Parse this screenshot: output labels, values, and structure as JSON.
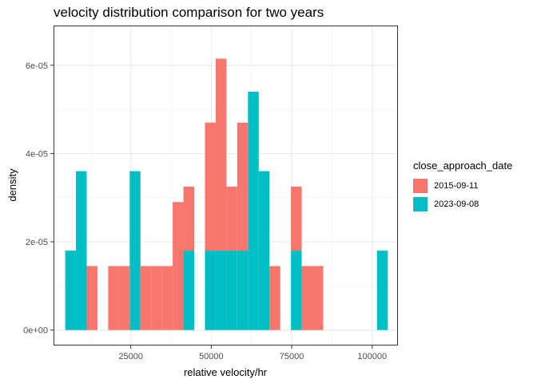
{
  "chart_data": {
    "type": "histogram",
    "title": "velocity distribution comparison for two years",
    "xlabel": "relative velocity/hr",
    "ylabel": "density",
    "xlim": [
      1000,
      108000
    ],
    "ylim": [
      -3.5e-06,
      6.9e-05
    ],
    "x_ticks": [
      25000,
      50000,
      75000,
      100000
    ],
    "x_tick_labels": [
      "25000",
      "50000",
      "75000",
      "100000"
    ],
    "y_ticks": [
      0,
      2e-05,
      4e-05,
      6e-05
    ],
    "y_tick_labels": [
      "0e+00",
      "2e-05",
      "4e-05",
      "6e-05"
    ],
    "bin_width": 3340,
    "stacked": true,
    "legend_title": "close_approach_date",
    "legend_position": "right",
    "grid": true,
    "series": [
      {
        "name": "2015-09-11",
        "color": "#F8766D",
        "bins": [
          {
            "x0": 11300,
            "x1": 14640,
            "density": 1.45e-05
          },
          {
            "x0": 17980,
            "x1": 21320,
            "density": 1.45e-05
          },
          {
            "x0": 21320,
            "x1": 24660,
            "density": 1.45e-05
          },
          {
            "x0": 28000,
            "x1": 31340,
            "density": 1.45e-05
          },
          {
            "x0": 31340,
            "x1": 34680,
            "density": 1.45e-05
          },
          {
            "x0": 34680,
            "x1": 38020,
            "density": 1.45e-05
          },
          {
            "x0": 38020,
            "x1": 41360,
            "density": 2.9e-05
          },
          {
            "x0": 41360,
            "x1": 44700,
            "density": 1.45e-05
          },
          {
            "x0": 48040,
            "x1": 51380,
            "density": 2.9e-05
          },
          {
            "x0": 51380,
            "x1": 54720,
            "density": 4.35e-05
          },
          {
            "x0": 54720,
            "x1": 58060,
            "density": 1.45e-05
          },
          {
            "x0": 58060,
            "x1": 61400,
            "density": 2.9e-05
          },
          {
            "x0": 64740,
            "x1": 68080,
            "density": 0
          },
          {
            "x0": 68080,
            "x1": 71420,
            "density": 1.45e-05
          },
          {
            "x0": 74760,
            "x1": 78100,
            "density": 1.45e-05
          },
          {
            "x0": 78100,
            "x1": 81440,
            "density": 1.45e-05
          },
          {
            "x0": 81440,
            "x1": 84780,
            "density": 1.45e-05
          }
        ]
      },
      {
        "name": "2023-09-08",
        "color": "#00BFC4",
        "bins": [
          {
            "x0": 4620,
            "x1": 7960,
            "density": 1.8e-05
          },
          {
            "x0": 7960,
            "x1": 11300,
            "density": 3.6e-05
          },
          {
            "x0": 24660,
            "x1": 28000,
            "density": 3.6e-05
          },
          {
            "x0": 41360,
            "x1": 44700,
            "density": 1.8e-05
          },
          {
            "x0": 48040,
            "x1": 51380,
            "density": 1.8e-05
          },
          {
            "x0": 51380,
            "x1": 54720,
            "density": 1.8e-05
          },
          {
            "x0": 54720,
            "x1": 58060,
            "density": 1.8e-05
          },
          {
            "x0": 58060,
            "x1": 61400,
            "density": 1.8e-05
          },
          {
            "x0": 61400,
            "x1": 64740,
            "density": 5.4e-05
          },
          {
            "x0": 64740,
            "x1": 68080,
            "density": 3.6e-05
          },
          {
            "x0": 74760,
            "x1": 78100,
            "density": 1.8e-05
          },
          {
            "x0": 101480,
            "x1": 104820,
            "density": 1.8e-05
          }
        ]
      }
    ]
  }
}
